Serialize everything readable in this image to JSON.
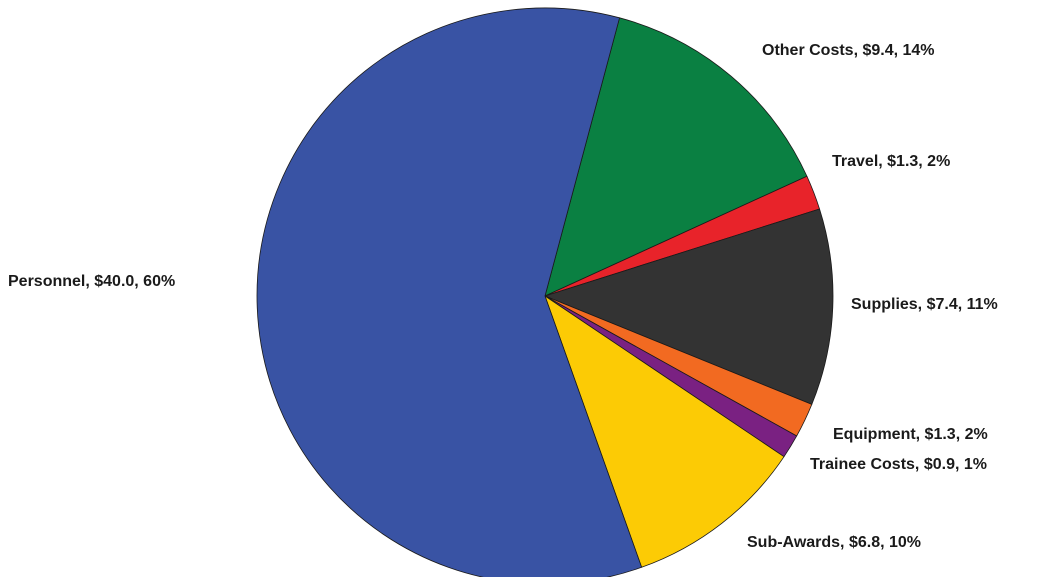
{
  "chart_data": {
    "type": "pie",
    "title": "",
    "slices": [
      {
        "name": "Other Costs",
        "amount": 9.4,
        "percent": 14,
        "value": 9.4,
        "color": "#0a8042",
        "label": "Other Costs, $9.4, 14%"
      },
      {
        "name": "Travel",
        "amount": 1.3,
        "percent": 2,
        "value": 1.3,
        "color": "#e8232a",
        "label": "Travel, $1.3, 2%"
      },
      {
        "name": "Supplies",
        "amount": 7.4,
        "percent": 11,
        "value": 7.4,
        "color": "#333333",
        "label": "Supplies, $7.4, 11%"
      },
      {
        "name": "Equipment",
        "amount": 1.3,
        "percent": 2,
        "value": 1.3,
        "color": "#f26a21",
        "label": "Equipment, $1.3, 2%"
      },
      {
        "name": "Trainee Costs",
        "amount": 0.9,
        "percent": 1,
        "value": 0.9,
        "color": "#7a2182",
        "label": "Trainee Costs, $0.9, 1%"
      },
      {
        "name": "Sub-Awards",
        "amount": 6.8,
        "percent": 10,
        "value": 6.8,
        "color": "#fccb05",
        "label": "Sub-Awards, $6.8, 10%"
      },
      {
        "name": "Personnel",
        "amount": 40.0,
        "percent": 60,
        "value": 40.0,
        "color": "#3953a4",
        "label": "Personnel, $40.0, 60%"
      }
    ],
    "legend": "none",
    "labels_outside": true
  }
}
